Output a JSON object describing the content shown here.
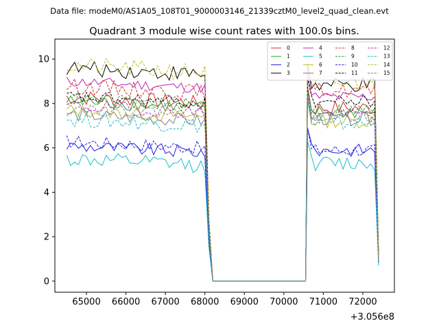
{
  "chart_data": {
    "type": "line",
    "suptitle": "Data file: modeM0/AS1A05_108T01_9000003146_21339cztM0_level2_quad_clean.evt",
    "title": "Quadrant 3 module wise count rates with 100.0s bins.",
    "xlabel": "",
    "ylabel": "",
    "x_offset_label": "+3.056e8",
    "xlim": [
      64200,
      72800
    ],
    "ylim": [
      -0.5,
      10.9
    ],
    "x_ticks": [
      65000,
      66000,
      67000,
      68000,
      69000,
      70000,
      71000,
      72000
    ],
    "x_tick_labels": [
      "65000",
      "66000",
      "67000",
      "68000",
      "69000",
      "70000",
      "71000",
      "72000"
    ],
    "y_ticks": [
      0,
      2,
      4,
      6,
      8,
      10
    ],
    "y_tick_labels": [
      "0",
      "2",
      "4",
      "6",
      "8",
      "10"
    ],
    "legend_position": "upper-right",
    "legend_columns": 4,
    "segments": [
      {
        "x_start": 64500,
        "x_end": 68000
      },
      {
        "x_start": 70600,
        "x_end": 72300
      }
    ],
    "gap": {
      "x_start": 68200,
      "x_end": 70550,
      "value": 0
    },
    "tail_end": {
      "x": 72400
    },
    "series": [
      {
        "name": "0",
        "color": "#d62728",
        "dash": "solid",
        "level1": 8.0,
        "level2": 7.8,
        "noise": 0.35,
        "end": 1.0
      },
      {
        "name": "1",
        "color": "#2ca02c",
        "dash": "solid",
        "level1": 7.8,
        "level2": 7.6,
        "noise": 0.3,
        "end": 0.9
      },
      {
        "name": "2",
        "color": "#1f1fdd",
        "dash": "solid",
        "level1": 5.8,
        "level2": 5.9,
        "noise": 0.3,
        "end": 0.8
      },
      {
        "name": "3",
        "color": "#000000",
        "dash": "solid",
        "level1": 9.3,
        "level2": 8.8,
        "noise": 0.35,
        "end": 1.1
      },
      {
        "name": "4",
        "color": "#c020c0",
        "dash": "solid",
        "level1": 8.7,
        "level2": 8.3,
        "noise": 0.25,
        "end": 1.0
      },
      {
        "name": "5",
        "color": "#17becf",
        "dash": "solid",
        "level1": 5.2,
        "level2": 5.3,
        "noise": 0.35,
        "end": 0.7
      },
      {
        "name": "6",
        "color": "#bcbd22",
        "dash": "solid",
        "level1": 7.4,
        "level2": 7.2,
        "noise": 0.3,
        "end": 0.9
      },
      {
        "name": "7",
        "color": "#808080",
        "dash": "solid",
        "level1": 7.2,
        "level2": 7.3,
        "noise": 0.3,
        "end": 0.9
      },
      {
        "name": "8",
        "color": "#d62728",
        "dash": "dashed",
        "level1": 8.5,
        "level2": 8.6,
        "noise": 0.35,
        "end": 1.0
      },
      {
        "name": "9",
        "color": "#2ca02c",
        "dash": "dashed",
        "level1": 7.9,
        "level2": 7.7,
        "noise": 0.3,
        "end": 1.0
      },
      {
        "name": "10",
        "color": "#1f1fdd",
        "dash": "dashed",
        "level1": 6.0,
        "level2": 5.9,
        "noise": 0.3,
        "end": 0.8
      },
      {
        "name": "11",
        "color": "#000000",
        "dash": "dashed",
        "level1": 8.0,
        "level2": 8.1,
        "noise": 0.3,
        "end": 1.0
      },
      {
        "name": "12",
        "color": "#c020c0",
        "dash": "dashed",
        "level1": 7.6,
        "level2": 7.5,
        "noise": 0.3,
        "end": 0.9
      },
      {
        "name": "13",
        "color": "#17becf",
        "dash": "dashed",
        "level1": 7.0,
        "level2": 7.1,
        "noise": 0.35,
        "end": 0.9
      },
      {
        "name": "14",
        "color": "#bcbd22",
        "dash": "dashed",
        "level1": 9.4,
        "level2": 8.9,
        "noise": 0.4,
        "end": 1.1
      },
      {
        "name": "15",
        "color": "#808080",
        "dash": "dashed",
        "level1": 7.5,
        "level2": 7.4,
        "noise": 0.3,
        "end": 0.9
      }
    ]
  }
}
